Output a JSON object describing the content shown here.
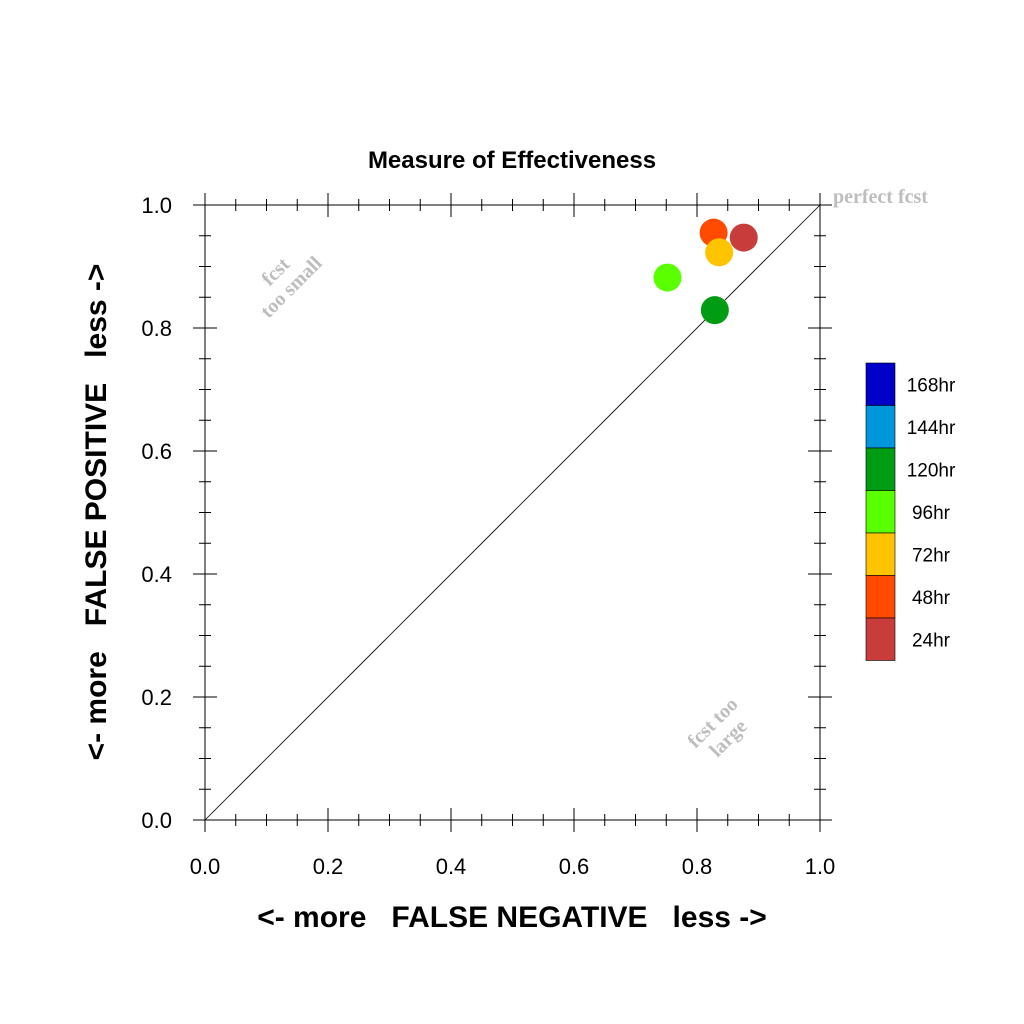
{
  "chart_data": {
    "type": "scatter",
    "title": "Measure of Effectiveness",
    "xlabel": "<- more   FALSE NEGATIVE   less ->",
    "ylabel": "<- more   FALSE POSITIVE   less ->",
    "xlim": [
      0.0,
      1.0
    ],
    "ylim": [
      0.0,
      1.0
    ],
    "x_ticks": [
      "0.0",
      "0.2",
      "0.4",
      "0.6",
      "0.8",
      "1.0"
    ],
    "y_ticks": [
      "0.0",
      "0.2",
      "0.4",
      "0.6",
      "0.8",
      "1.0"
    ],
    "reference_line": {
      "from": [
        0,
        0
      ],
      "to": [
        1,
        1
      ]
    },
    "annotations": {
      "perfect": "perfect fcst",
      "too_small_line1": "fcst",
      "too_small_line2": "too small",
      "too_large_line1": "fcst too",
      "too_large_line2": "large"
    },
    "points": [
      {
        "label": "24hr",
        "x": 0.876,
        "y": 0.947,
        "color": "#c83c3c"
      },
      {
        "label": "48hr",
        "x": 0.827,
        "y": 0.955,
        "color": "#ff4a00"
      },
      {
        "label": "72hr",
        "x": 0.836,
        "y": 0.923,
        "color": "#ffc400"
      },
      {
        "label": "96hr",
        "x": 0.752,
        "y": 0.882,
        "color": "#5aff00"
      },
      {
        "label": "120hr",
        "x": 0.829,
        "y": 0.829,
        "color": "#009c14"
      }
    ],
    "legend": [
      {
        "label": "168hr",
        "color": "#0000c8"
      },
      {
        "label": "144hr",
        "color": "#0096dc"
      },
      {
        "label": "120hr",
        "color": "#009c14"
      },
      {
        "label": "96hr",
        "color": "#5aff00"
      },
      {
        "label": "72hr",
        "color": "#ffc400"
      },
      {
        "label": "48hr",
        "color": "#ff4a00"
      },
      {
        "label": "24hr",
        "color": "#c83c3c"
      }
    ]
  }
}
